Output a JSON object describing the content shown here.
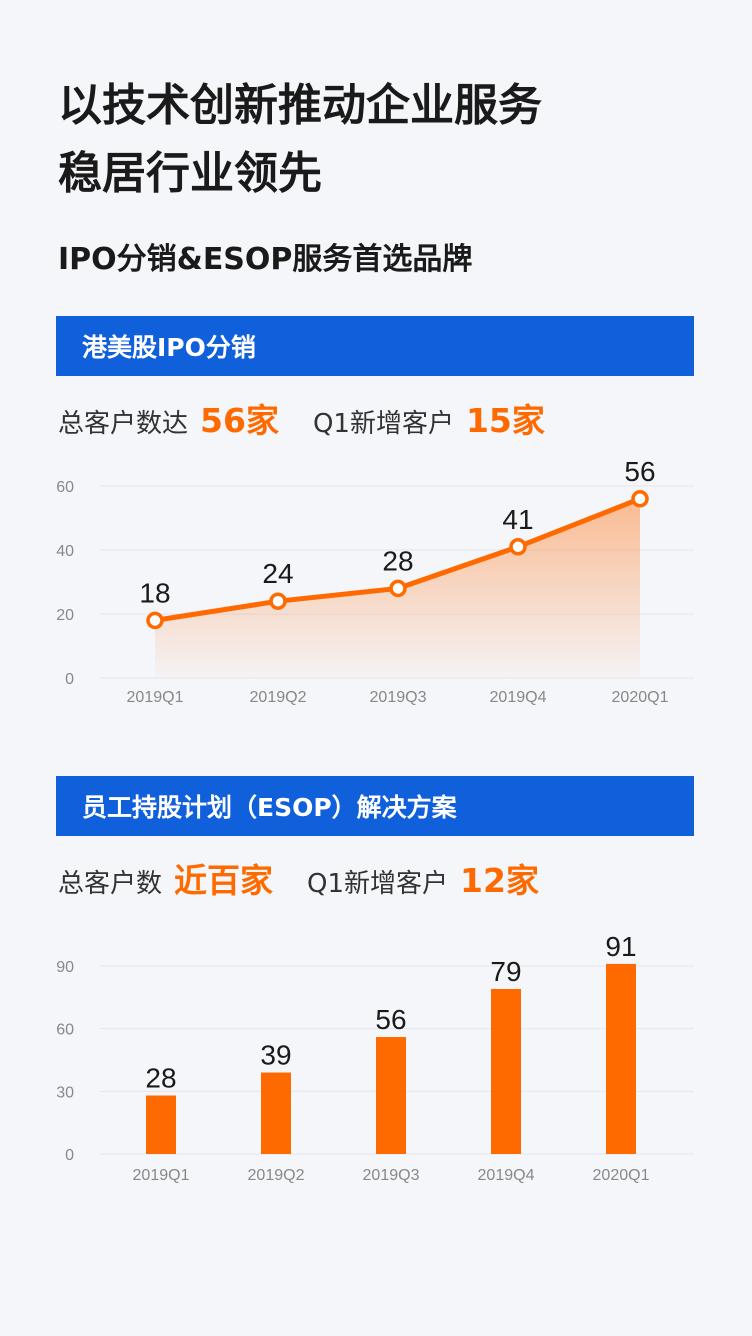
{
  "header": {
    "title_line1": "以技术创新推动企业服务",
    "title_line2": "稳居行业领先",
    "subtitle": "IPO分销&ESOP服务首选品牌"
  },
  "section1": {
    "banner": "港美股IPO分销",
    "stat1_label": "总客户数达",
    "stat1_value": "56家",
    "stat2_label": "Q1新增客户",
    "stat2_value": "15家"
  },
  "section2": {
    "banner": "员工持股计划（ESOP）解决方案",
    "stat1_label": "总客户数",
    "stat1_value": "近百家",
    "stat2_label": "Q1新增客户",
    "stat2_value": "12家"
  },
  "colors": {
    "accent": "#ff6a00",
    "banner": "#1060dc",
    "background": "#f4f6fa"
  },
  "chart_data": [
    {
      "type": "area",
      "categories": [
        "2019Q1",
        "2019Q2",
        "2019Q3",
        "2019Q4",
        "2020Q1"
      ],
      "values": [
        18,
        24,
        28,
        41,
        56
      ],
      "ylim": [
        0,
        60
      ],
      "yticks": [
        0,
        20,
        40,
        60
      ],
      "grid": true
    },
    {
      "type": "bar",
      "categories": [
        "2019Q1",
        "2019Q2",
        "2019Q3",
        "2019Q4",
        "2020Q1"
      ],
      "values": [
        28,
        39,
        56,
        79,
        91
      ],
      "ylim": [
        0,
        90
      ],
      "yticks": [
        0,
        30,
        60,
        90
      ],
      "grid": true
    }
  ]
}
